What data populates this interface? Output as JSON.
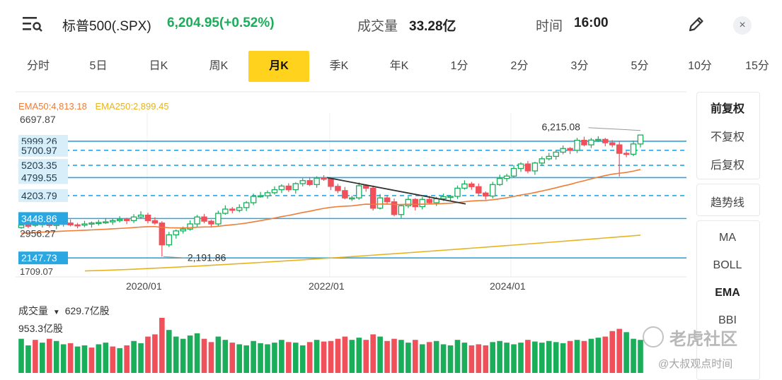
{
  "header": {
    "title": "标普500(.SPX)",
    "price_change": "6,204.95(+0.52%)",
    "volume_label": "成交量",
    "volume_value": "33.28亿",
    "time_label": "时间",
    "time_value": "16:00",
    "close_symbol": "×"
  },
  "tabs": [
    {
      "label": "分时",
      "active": false
    },
    {
      "label": "5日",
      "active": false
    },
    {
      "label": "日K",
      "active": false
    },
    {
      "label": "周K",
      "active": false
    },
    {
      "label": "月K",
      "active": true
    },
    {
      "label": "季K",
      "active": false
    },
    {
      "label": "年K",
      "active": false
    },
    {
      "label": "1分",
      "active": false
    },
    {
      "label": "2分",
      "active": false
    },
    {
      "label": "3分",
      "active": false
    },
    {
      "label": "5分",
      "active": false
    },
    {
      "label": "10分",
      "active": false
    },
    {
      "label": "15分",
      "active": false
    }
  ],
  "side_panel": {
    "adjust": [
      "前复权",
      "不复权",
      "后复权"
    ],
    "trendline": "趋势线",
    "indicators": [
      "MA",
      "BOLL",
      "EMA",
      "BBI"
    ],
    "selected_indicator": "EMA"
  },
  "legend": {
    "ema50": "EMA50:4,813.18",
    "ema250": "EMA250:2,899.45"
  },
  "volume": {
    "label": "成交量",
    "arrow": "▼",
    "current": "629.7亿股",
    "max_label": "953.3亿股"
  },
  "watermark": {
    "brand": "老虎社区",
    "author": "@大叔观点时间"
  },
  "colors": {
    "up": "#1aad5a",
    "down": "#f0505a",
    "ema50": "#f07c36",
    "ema250": "#e6b422",
    "level_line": "#2aa6e0",
    "label_bg": "#2aa6e0",
    "active_tab": "#ffd21e"
  },
  "chart_data": {
    "type": "candlestick",
    "y_axis_top_label": "6697.87",
    "y_axis_labels": [
      "2956.27",
      "1709.07"
    ],
    "ylim": [
      1709.07,
      6697.87
    ],
    "x_tick_labels": [
      "2020/01",
      "2022/01",
      "2024/01"
    ],
    "levels": [
      {
        "value": 5999.26,
        "label": "5999.26",
        "style": "solid"
      },
      {
        "value": 5700.97,
        "label": "5700.97",
        "style": "dashed"
      },
      {
        "value": 5203.35,
        "label": "5203.35",
        "style": "dashed"
      },
      {
        "value": 4799.55,
        "label": "4799.55",
        "style": "solid"
      },
      {
        "value": 4203.79,
        "label": "4203.79",
        "style": "dashed"
      },
      {
        "value": 3448.86,
        "label": "3448.86",
        "style": "solid"
      },
      {
        "value": 2147.73,
        "label": "2147.73",
        "style": "solid"
      }
    ],
    "annotations": [
      {
        "text": "6,215.08",
        "value": 6215.08
      },
      {
        "text": "2,191.86",
        "value": 2191.86
      }
    ],
    "ema50_legend": "EMA50:4,813.18",
    "ema250_legend": "EMA250:2,899.45"
  }
}
